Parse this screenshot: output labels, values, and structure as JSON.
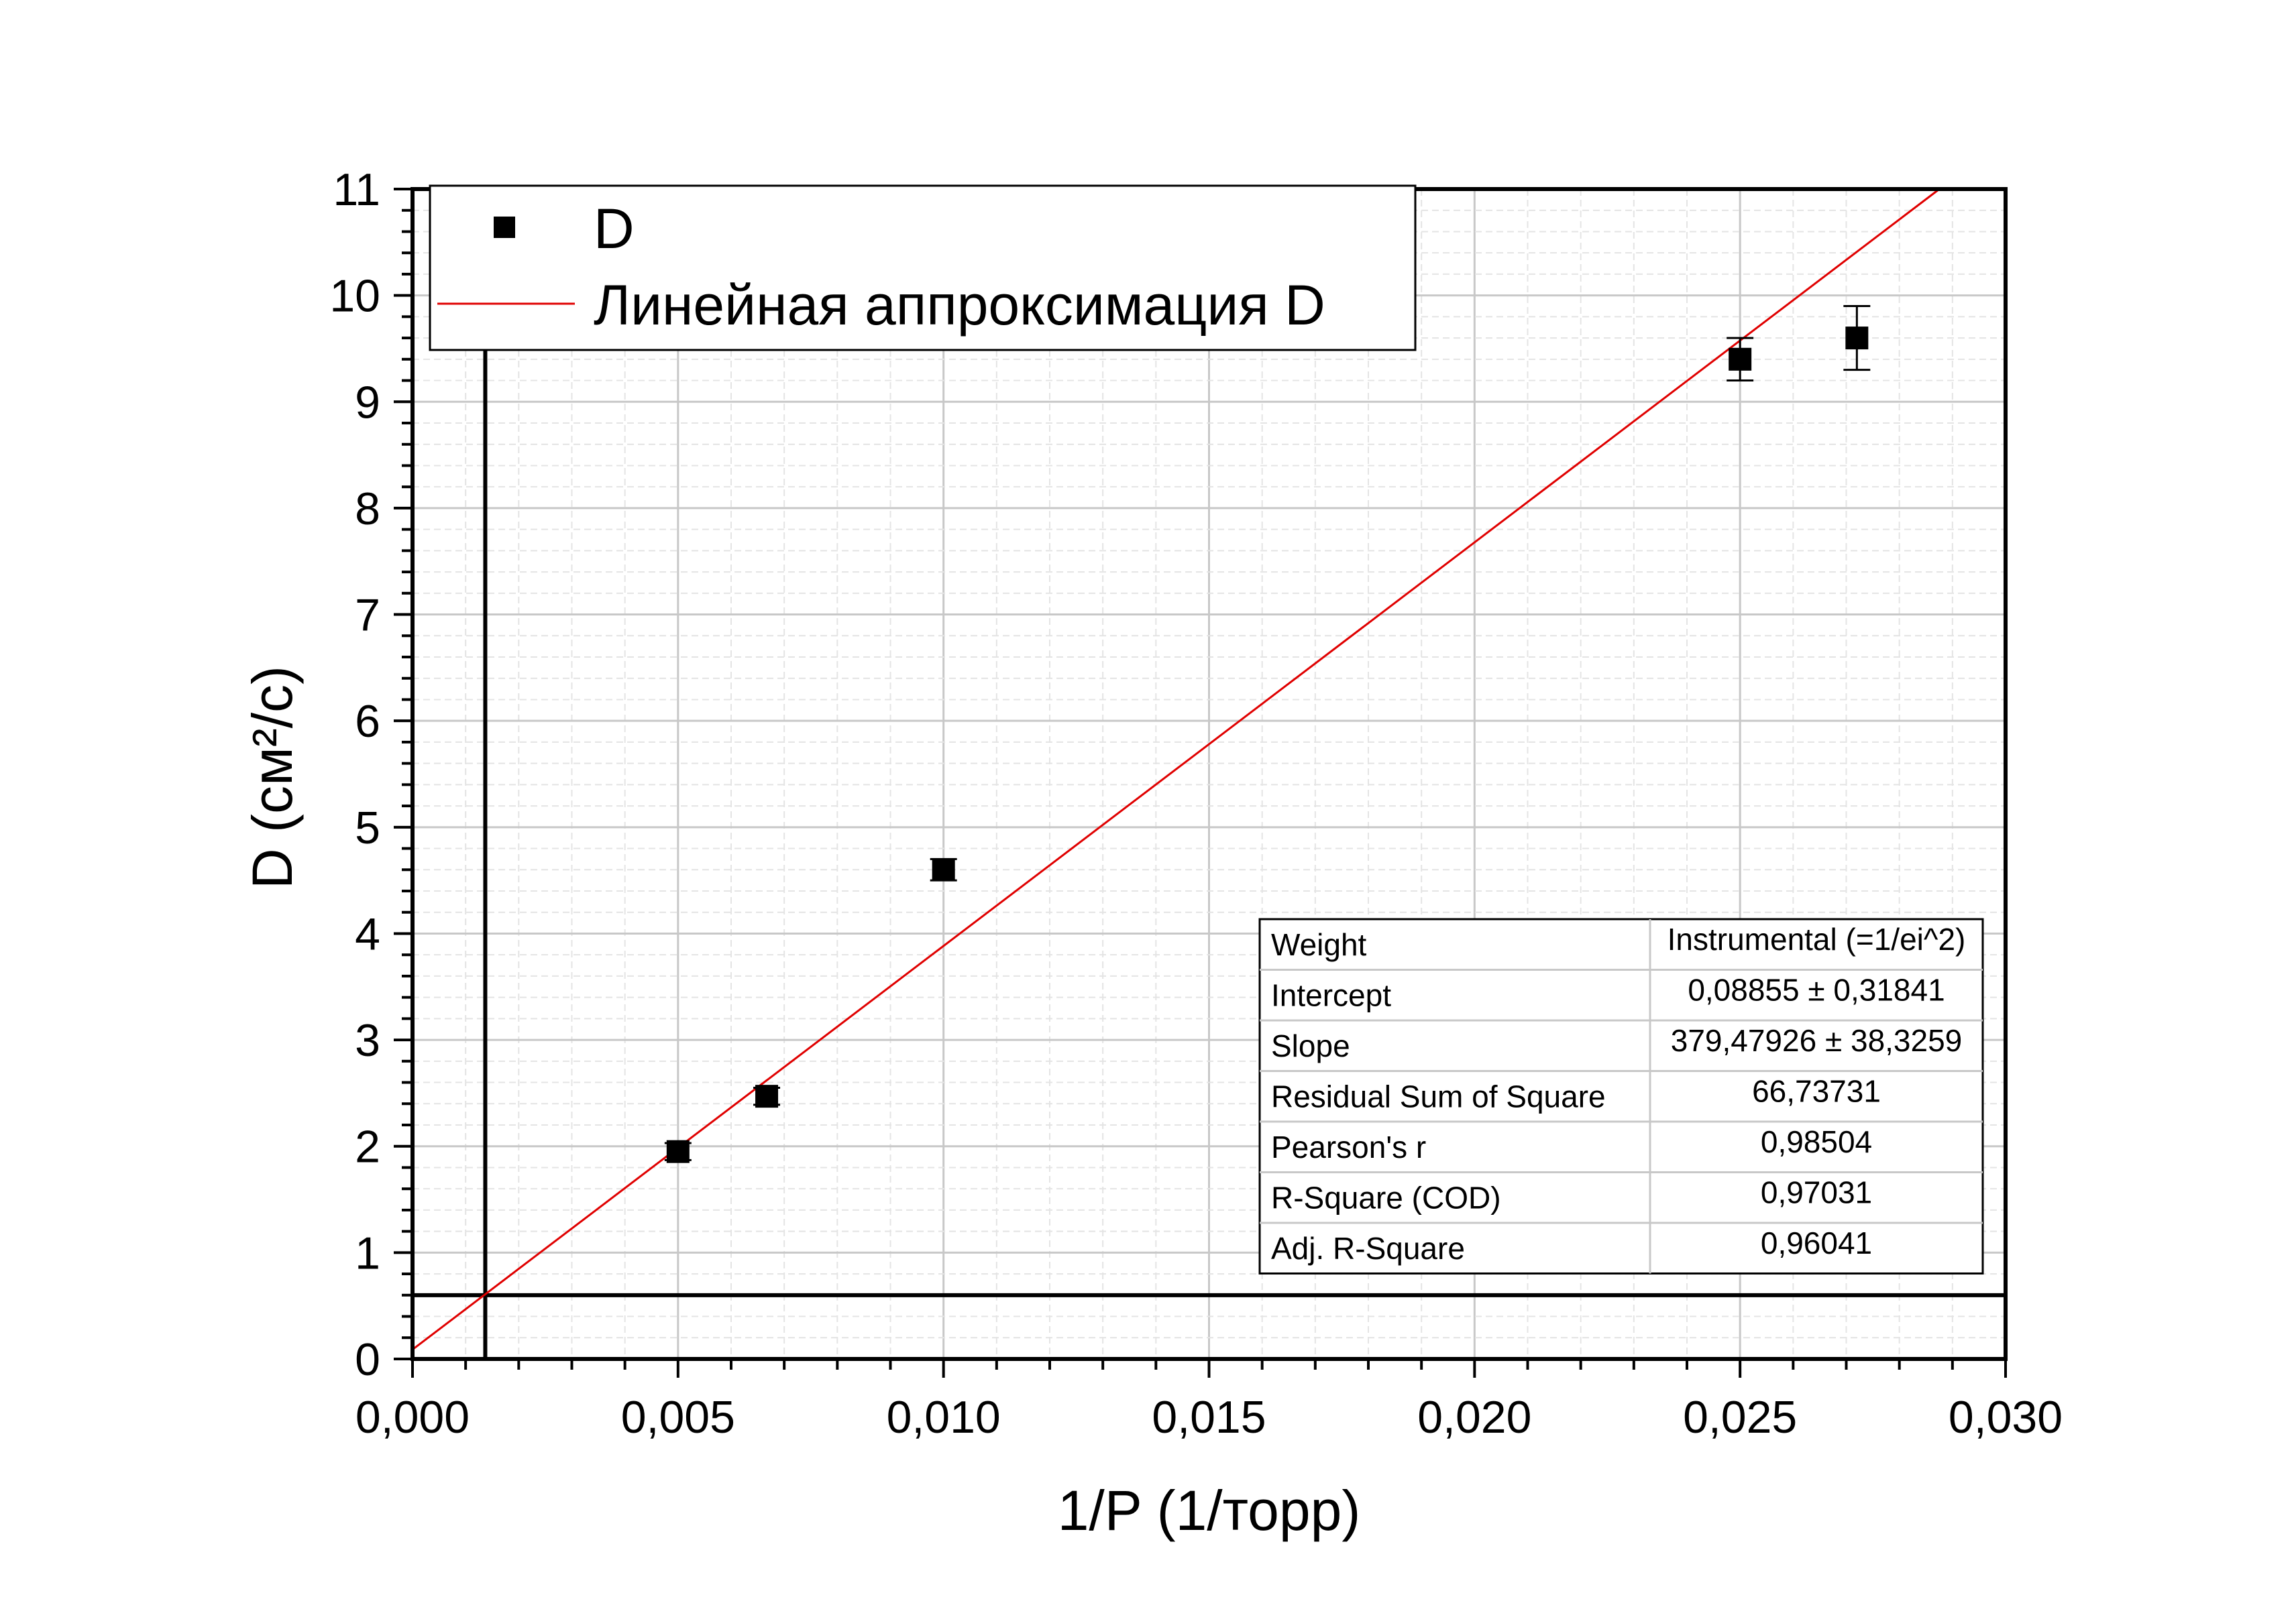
{
  "chart_data": {
    "type": "scatter",
    "title": "",
    "xlabel": "1/P (1/торр)",
    "ylabel": "D (см²/с)",
    "xlim": [
      0,
      0.03
    ],
    "ylim": [
      0,
      11
    ],
    "x_ticks": [
      "0,000",
      "0,005",
      "0,010",
      "0,015",
      "0,020",
      "0,025",
      "0,030"
    ],
    "y_ticks": [
      "0",
      "1",
      "2",
      "3",
      "4",
      "5",
      "6",
      "7",
      "8",
      "9",
      "10",
      "11"
    ],
    "grid": true,
    "legend_position": "top-left",
    "series": [
      {
        "name": "D",
        "kind": "scatter",
        "marker": "square",
        "color": "#000000",
        "points": [
          {
            "x": 0.005,
            "y": 1.95,
            "err": 0.08
          },
          {
            "x": 0.00667,
            "y": 2.47,
            "err": 0.08
          },
          {
            "x": 0.01,
            "y": 4.6,
            "err": 0.1
          },
          {
            "x": 0.025,
            "y": 9.4,
            "err": 0.2
          },
          {
            "x": 0.0272,
            "y": 9.6,
            "err": 0.3
          }
        ]
      },
      {
        "name": "Линейная аппроксимация D",
        "kind": "line",
        "color": "#e00000",
        "intercept": 0.08855,
        "slope": 379.47926
      }
    ],
    "reference_lines": {
      "vertical_x": 0.00137,
      "horizontal_y": 0.6
    },
    "stats_table": [
      [
        "Weight",
        "Instrumental (=1/ei^2)"
      ],
      [
        "Intercept",
        "0,08855 ± 0,31841"
      ],
      [
        "Slope",
        "379,47926 ± 38,3259"
      ],
      [
        "Residual Sum of Square",
        "66,73731"
      ],
      [
        "Pearson's r",
        "0,98504"
      ],
      [
        "R-Square (COD)",
        "0,97031"
      ],
      [
        "Adj. R-Square",
        "0,96041"
      ]
    ]
  }
}
